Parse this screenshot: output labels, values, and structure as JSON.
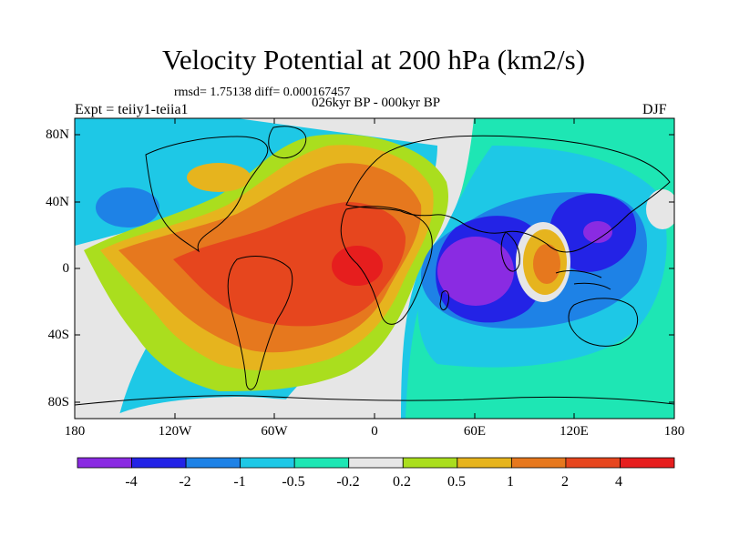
{
  "title": "Velocity Potential at 200 hPa (km2/s)",
  "stats_line": "rmsd= 1.75138 diff= 0.000167457",
  "period": "026kyr BP - 000kyr BP",
  "experiment": "Expt = teiiy1-teiia1",
  "season": "DJF",
  "axes": {
    "lat_labels": [
      "80N",
      "40N",
      "0",
      "40S",
      "80S"
    ],
    "lat_values": [
      80,
      40,
      0,
      -40,
      -80
    ],
    "lon_labels": [
      "180",
      "120W",
      "60W",
      "0",
      "60E",
      "120E",
      "180"
    ],
    "lon_values": [
      -180,
      -120,
      -60,
      0,
      60,
      120,
      180
    ],
    "lat_range": [
      -90,
      90
    ],
    "lon_range": [
      -180,
      180
    ]
  },
  "colorbar": {
    "labels": [
      "-4",
      "-2",
      "-1",
      "-0.5",
      "-0.2",
      "0.2",
      "0.5",
      "1",
      "2",
      "4"
    ],
    "colors": [
      "#8a2be2",
      "#2323e6",
      "#1e82e6",
      "#1ec8e6",
      "#1ee6b4",
      "#e6e6e6",
      "#aade1e",
      "#e6b41e",
      "#e6781e",
      "#e6461e",
      "#e61e1e"
    ]
  },
  "field_features": [
    {
      "sign": "positive",
      "level": 4,
      "lon": -12,
      "lat": 0
    },
    {
      "sign": "negative",
      "level": -4,
      "lon": 35,
      "lat": -3
    },
    {
      "sign": "negative",
      "level": -4,
      "lon": 145,
      "lat": 25
    },
    {
      "sign": "positive",
      "level": 2,
      "lon": 98,
      "lat": 2
    },
    {
      "sign": "negative",
      "level": -1,
      "lon": -160,
      "lat": 40
    }
  ]
}
